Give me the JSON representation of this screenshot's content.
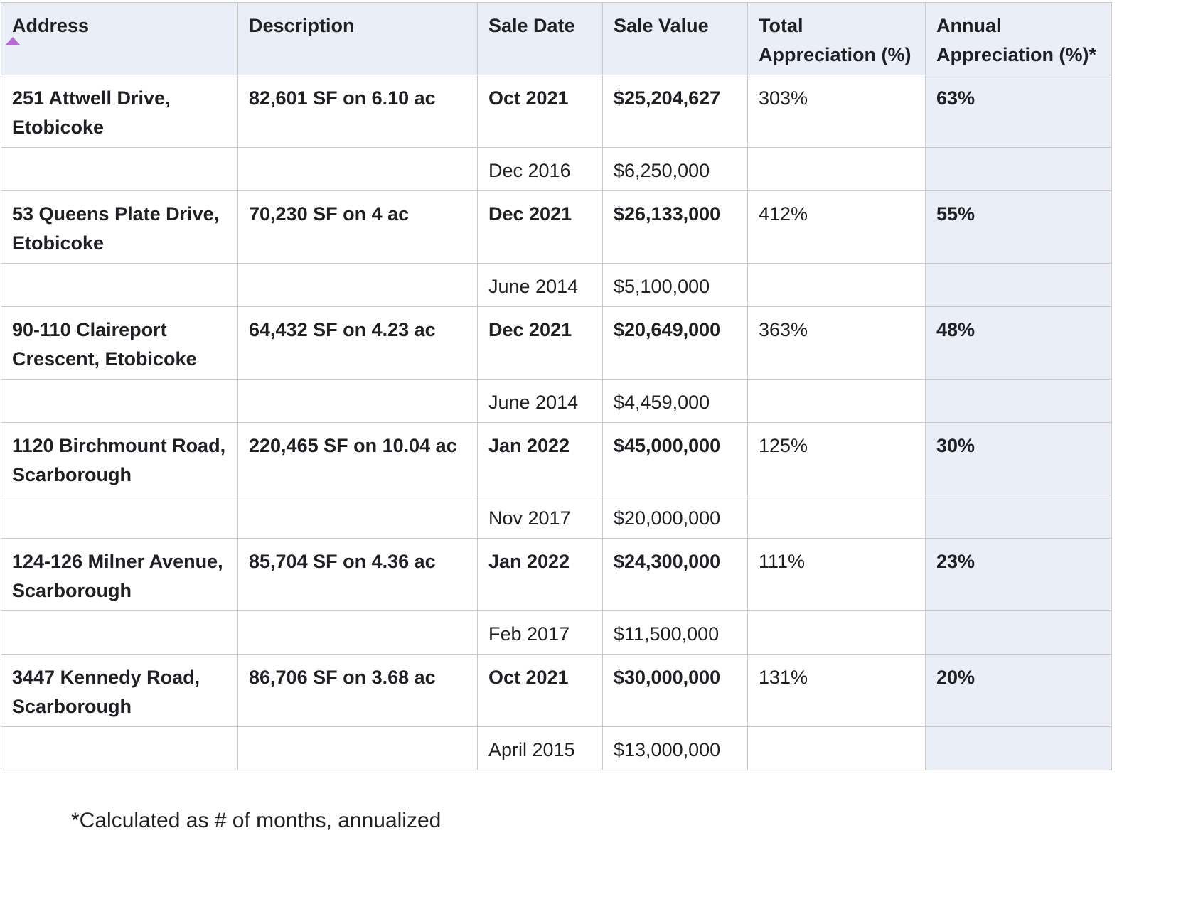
{
  "table": {
    "headers": {
      "address": "Address",
      "description": "Description",
      "sale_date": "Sale Date",
      "sale_value": "Sale Value",
      "total_appreciation": "Total Appreciation (%)",
      "annual_appreciation": "Annual Appreciation (%)*"
    },
    "sort": {
      "column": "address",
      "direction": "ascending",
      "indicator_color": "#b96ad6"
    },
    "rows": [
      {
        "address": "251 Attwell Drive, Etobicoke",
        "description": "82,601 SF on 6.10 ac",
        "sale_date": "Oct 2021",
        "sale_value": "$25,204,627",
        "total_appreciation": "303%",
        "annual_appreciation": "63%",
        "prior_sale_date": "Dec 2016",
        "prior_sale_value": "$6,250,000"
      },
      {
        "address": "53 Queens Plate Drive, Etobicoke",
        "description": "70,230 SF on 4 ac",
        "sale_date": "Dec 2021",
        "sale_value": "$26,133,000",
        "total_appreciation": "412%",
        "annual_appreciation": "55%",
        "prior_sale_date": "June 2014",
        "prior_sale_value": "$5,100,000"
      },
      {
        "address": "90-110 Claireport Crescent, Etobicoke",
        "description": "64,432 SF on 4.23 ac",
        "sale_date": "Dec 2021",
        "sale_value": "$20,649,000",
        "total_appreciation": "363%",
        "annual_appreciation": "48%",
        "prior_sale_date": "June 2014",
        "prior_sale_value": "$4,459,000"
      },
      {
        "address": "1120 Birchmount Road, Scarborough",
        "description": "220,465 SF on 10.04 ac",
        "sale_date": "Jan 2022",
        "sale_value": "$45,000,000",
        "total_appreciation": "125%",
        "annual_appreciation": "30%",
        "prior_sale_date": "Nov 2017",
        "prior_sale_value": "$20,000,000"
      },
      {
        "address": "124-126 Milner Avenue, Scarborough",
        "description": "85,704 SF on 4.36 ac",
        "sale_date": "Jan 2022",
        "sale_value": "$24,300,000",
        "total_appreciation": "111%",
        "annual_appreciation": "23%",
        "prior_sale_date": "Feb 2017",
        "prior_sale_value": "$11,500,000"
      },
      {
        "address": "3447 Kennedy Road, Scarborough",
        "description": "86,706 SF on 3.68 ac",
        "sale_date": "Oct 2021",
        "sale_value": "$30,000,000",
        "total_appreciation": "131%",
        "annual_appreciation": "20%",
        "prior_sale_date": "April 2015",
        "prior_sale_value": "$13,000,000"
      }
    ]
  },
  "footnote": "*Calculated as # of months, annualized",
  "colors": {
    "header_bg": "#e9eef7",
    "annual_column_bg": "#e9eef7",
    "border": "#c9c9c9",
    "text": "#1f1f24"
  }
}
